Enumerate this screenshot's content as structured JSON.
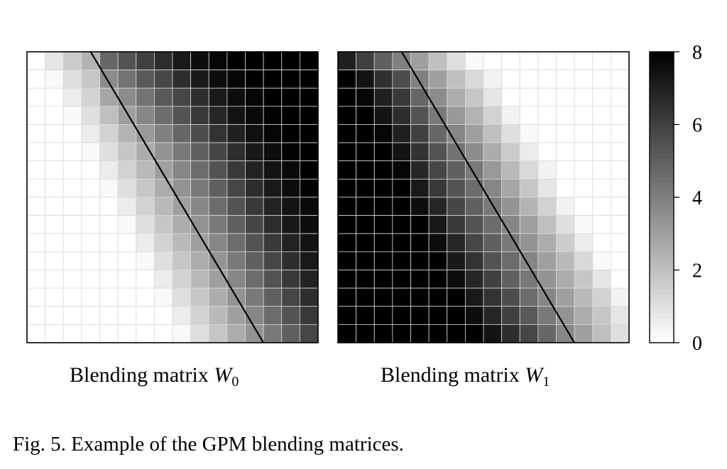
{
  "figure": {
    "caption": "Fig. 5.  Example of the GPM blending matrices.",
    "panels": [
      {
        "title_text": "Blending matrix ",
        "title_math": "W",
        "title_sub": "0"
      },
      {
        "title_text": "Blending matrix ",
        "title_math": "W",
        "title_sub": "1"
      }
    ],
    "colorbar": {
      "ticks": [
        "0",
        "2",
        "4",
        "6",
        "8"
      ],
      "colors": {
        "low": "#ffffff",
        "high": "#000000",
        "grid": "#d9d9d9",
        "line": "#000000"
      }
    }
  },
  "chart_data": [
    {
      "type": "heatmap",
      "title": "Blending matrix W0",
      "rows": 16,
      "cols": 16,
      "value_range": [
        0,
        8
      ],
      "boundary_line": {
        "row0_col": 3.5,
        "row15_col": 12.5
      },
      "description_of_pattern": "values rise from 0 (left, below diagonal) to 8 (right)",
      "values": [
        [
          0,
          0.8,
          1.6,
          2.4,
          4.8,
          5.4,
          6.0,
          6.6,
          7.2,
          7.6,
          7.8,
          8,
          8,
          8,
          8,
          8
        ],
        [
          0,
          0.2,
          1.0,
          1.8,
          3.6,
          4.4,
          5.2,
          5.8,
          6.6,
          7.2,
          7.6,
          7.8,
          8,
          8,
          8,
          8
        ],
        [
          0,
          0,
          0.6,
          1.4,
          2.8,
          3.6,
          4.4,
          5.2,
          5.8,
          6.6,
          7.2,
          7.6,
          7.8,
          8,
          8,
          8
        ],
        [
          0,
          0,
          0.2,
          1.0,
          2.0,
          3.0,
          3.8,
          4.6,
          5.4,
          6.2,
          6.8,
          7.4,
          7.7,
          7.9,
          8,
          8
        ],
        [
          0,
          0,
          0,
          0.6,
          1.4,
          2.4,
          3.2,
          4.0,
          4.8,
          5.6,
          6.4,
          7.0,
          7.5,
          7.8,
          8,
          8
        ],
        [
          0,
          0,
          0,
          0.2,
          1.0,
          1.8,
          2.6,
          3.4,
          4.2,
          5.0,
          5.8,
          6.6,
          7.2,
          7.6,
          7.9,
          8
        ],
        [
          0,
          0,
          0,
          0,
          0.6,
          1.4,
          2.2,
          3.0,
          3.8,
          4.6,
          5.4,
          6.2,
          6.9,
          7.4,
          7.7,
          8
        ],
        [
          0,
          0,
          0,
          0,
          0.2,
          1.0,
          1.8,
          2.6,
          3.4,
          4.2,
          5.0,
          5.8,
          6.6,
          7.2,
          7.6,
          7.9
        ],
        [
          0,
          0,
          0,
          0,
          0,
          0.6,
          1.4,
          2.2,
          3.0,
          3.8,
          4.6,
          5.4,
          6.2,
          6.9,
          7.4,
          7.7
        ],
        [
          0,
          0,
          0,
          0,
          0,
          0.2,
          1.0,
          1.8,
          2.6,
          3.4,
          4.2,
          5.0,
          5.8,
          6.6,
          7.2,
          7.6
        ],
        [
          0,
          0,
          0,
          0,
          0,
          0,
          0.6,
          1.4,
          2.2,
          3.0,
          3.8,
          4.6,
          5.4,
          6.2,
          6.9,
          7.4
        ],
        [
          0,
          0,
          0,
          0,
          0,
          0,
          0.2,
          1.0,
          1.8,
          2.6,
          3.4,
          4.2,
          5.0,
          5.8,
          6.6,
          7.2
        ],
        [
          0,
          0,
          0,
          0,
          0,
          0,
          0,
          0.6,
          1.4,
          2.2,
          3.0,
          3.8,
          4.6,
          5.4,
          6.2,
          6.9
        ],
        [
          0,
          0,
          0,
          0,
          0,
          0,
          0,
          0.2,
          1.0,
          1.8,
          2.6,
          3.4,
          4.2,
          5.0,
          5.8,
          6.6
        ],
        [
          0,
          0,
          0,
          0,
          0,
          0,
          0,
          0,
          0.6,
          1.4,
          2.2,
          3.0,
          3.8,
          4.6,
          5.4,
          6.2
        ],
        [
          0,
          0,
          0,
          0,
          0,
          0,
          0,
          0,
          0.2,
          1.0,
          1.8,
          2.6,
          3.4,
          4.2,
          5.0,
          5.8
        ]
      ]
    },
    {
      "type": "heatmap",
      "title": "Blending matrix W1",
      "rows": 16,
      "cols": 16,
      "value_range": [
        0,
        8
      ],
      "boundary_line": {
        "row0_col": 3.5,
        "row15_col": 12.5
      },
      "values": [
        [
          7.0,
          6.0,
          5.0,
          4.0,
          3.0,
          2.0,
          1.0,
          0.2,
          0,
          0,
          0,
          0,
          0,
          0,
          0,
          0
        ],
        [
          8,
          7.4,
          6.5,
          5.6,
          4.0,
          3.0,
          2.0,
          1.2,
          0.4,
          0,
          0,
          0,
          0,
          0,
          0,
          0
        ],
        [
          8,
          7.8,
          7.0,
          6.2,
          4.8,
          3.6,
          2.6,
          1.8,
          0.8,
          0,
          0,
          0,
          0,
          0,
          0,
          0
        ],
        [
          8,
          8,
          7.4,
          6.6,
          5.4,
          4.2,
          3.2,
          2.4,
          1.4,
          0.4,
          0,
          0,
          0,
          0,
          0,
          0
        ],
        [
          8,
          8,
          7.8,
          7.0,
          6.0,
          4.8,
          3.8,
          3.0,
          2.0,
          1.0,
          0.2,
          0,
          0,
          0,
          0,
          0
        ],
        [
          8,
          8,
          8,
          7.4,
          6.4,
          5.4,
          4.4,
          3.6,
          2.6,
          1.6,
          0.6,
          0,
          0,
          0,
          0,
          0
        ],
        [
          8,
          8,
          8,
          7.8,
          6.8,
          5.8,
          5.0,
          4.2,
          3.2,
          2.2,
          1.2,
          0.4,
          0,
          0,
          0,
          0
        ],
        [
          8,
          8,
          8,
          8,
          7.2,
          6.2,
          5.4,
          4.6,
          3.8,
          2.8,
          1.8,
          0.8,
          0,
          0,
          0,
          0
        ],
        [
          8,
          8,
          8,
          8,
          7.6,
          6.8,
          5.8,
          5.0,
          4.2,
          3.4,
          2.4,
          1.4,
          0.4,
          0,
          0,
          0
        ],
        [
          8,
          8,
          8,
          8,
          8,
          7.2,
          6.2,
          5.4,
          4.6,
          3.8,
          3.0,
          2.0,
          1.0,
          0.2,
          0,
          0
        ],
        [
          8,
          8,
          8,
          8,
          8,
          7.6,
          6.8,
          5.8,
          5.0,
          4.2,
          3.4,
          2.6,
          1.6,
          0.6,
          0,
          0
        ],
        [
          8,
          8,
          8,
          8,
          8,
          8,
          7.2,
          6.4,
          5.4,
          4.6,
          3.8,
          3.0,
          2.2,
          1.2,
          0.2,
          0
        ],
        [
          8,
          8,
          8,
          8,
          8,
          8,
          7.6,
          6.8,
          6.0,
          5.0,
          4.2,
          3.4,
          2.6,
          1.8,
          0.8,
          0
        ],
        [
          8,
          8,
          8,
          8,
          8,
          8,
          8,
          7.2,
          6.4,
          5.6,
          4.6,
          3.8,
          3.0,
          2.2,
          1.4,
          0.4
        ],
        [
          8,
          8,
          8,
          8,
          8,
          8,
          8,
          7.6,
          6.8,
          6.0,
          5.2,
          4.2,
          3.4,
          2.6,
          1.8,
          0.8
        ],
        [
          8,
          8,
          8,
          8,
          8,
          8,
          8,
          8,
          7.4,
          6.6,
          5.8,
          4.8,
          3.8,
          3.0,
          2.0,
          1.0
        ]
      ]
    }
  ]
}
